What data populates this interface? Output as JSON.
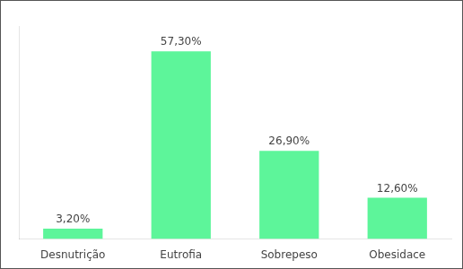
{
  "chart_data": {
    "type": "bar",
    "categories": [
      "Desnutrição",
      "Eutrofia",
      "Sobrepeso",
      "Obesidace"
    ],
    "values": [
      3.2,
      57.3,
      26.9,
      12.6
    ],
    "value_labels": [
      "3,20%",
      "57,30%",
      "26,90%",
      "12,60%"
    ],
    "color": "#5DF59A",
    "ylim": [
      0,
      65
    ],
    "grid": false,
    "data_labels": true,
    "tick_labels": "x"
  }
}
